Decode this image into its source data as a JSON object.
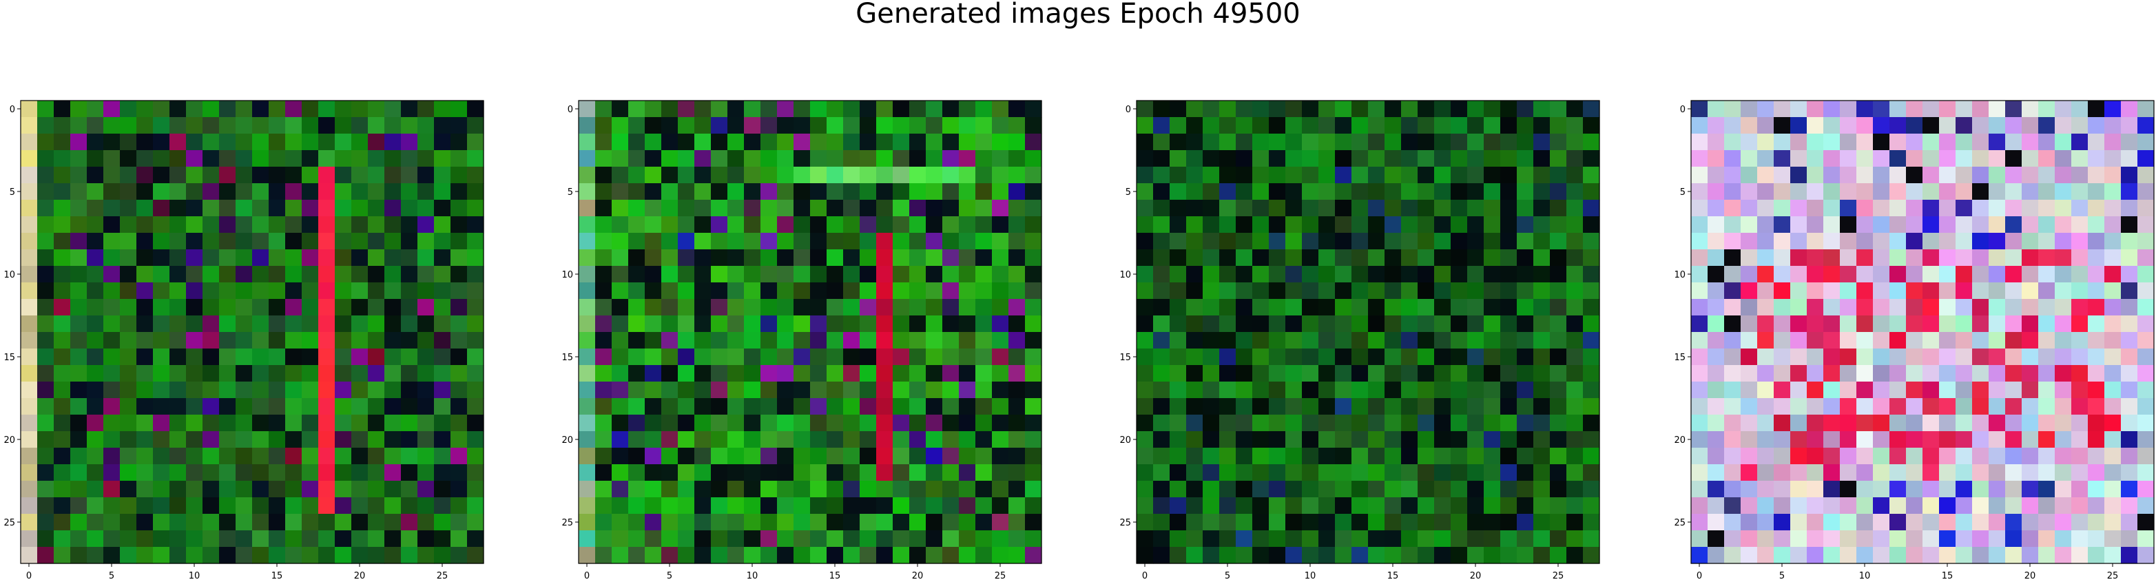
{
  "figure": {
    "title": "Generated images Epoch 49500"
  },
  "panels": [
    {
      "x_ticks": [
        "0",
        "5",
        "10",
        "15",
        "20",
        "25"
      ],
      "y_ticks": [
        "0",
        "5",
        "10",
        "15",
        "20",
        "25"
      ],
      "colors": {
        "bg": "#0b3d10",
        "accent": "#ff1f3a",
        "dark": "#0a0a12"
      }
    },
    {
      "x_ticks": [
        "0",
        "5",
        "10",
        "15",
        "20",
        "25"
      ],
      "y_ticks": [
        "0",
        "5",
        "10",
        "15",
        "20",
        "25"
      ],
      "colors": {
        "bg": "#0e4a14",
        "accent": "#d0103a",
        "dark": "#0a0a12"
      }
    },
    {
      "x_ticks": [
        "0",
        "5",
        "10",
        "15",
        "20",
        "25"
      ],
      "y_ticks": [
        "0",
        "5",
        "10",
        "15",
        "20",
        "25"
      ],
      "colors": {
        "bg": "#0b3e10",
        "accent": "#1c2f5a",
        "dark": "#07090a"
      }
    },
    {
      "x_ticks": [
        "0",
        "5",
        "10",
        "15",
        "20",
        "25"
      ],
      "y_ticks": [
        "0",
        "5",
        "10",
        "15",
        "20",
        "25"
      ],
      "colors": {
        "bg": "#b9a9d8",
        "accent": "#e0103a",
        "dark": "#101018"
      }
    }
  ]
}
